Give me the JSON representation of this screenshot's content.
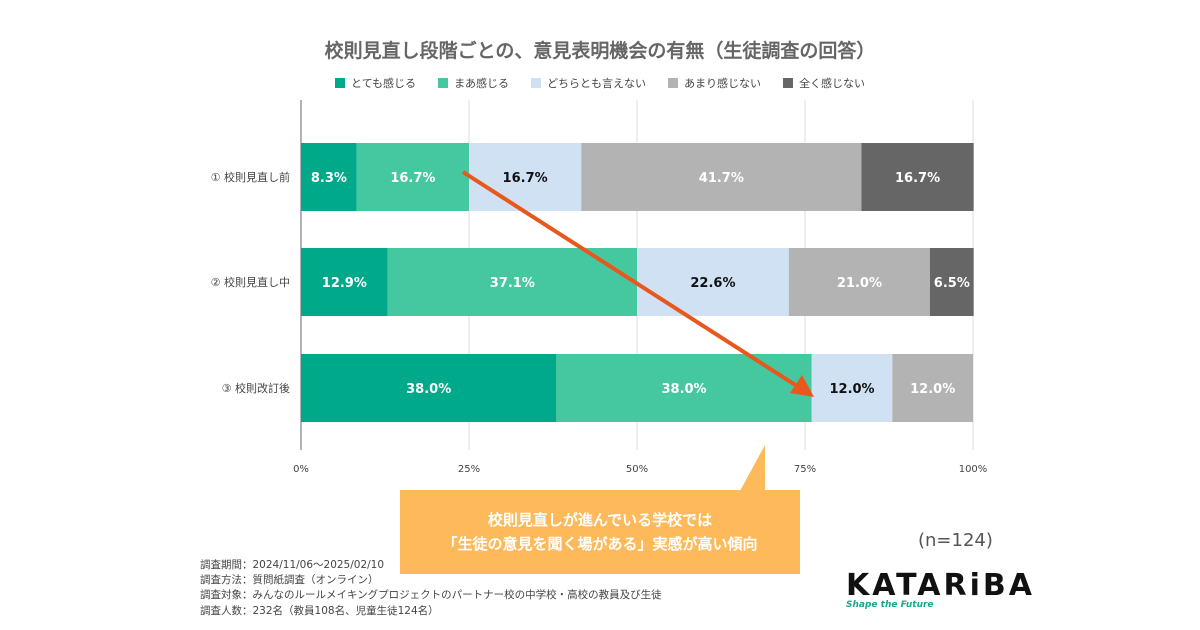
{
  "chart_data": {
    "type": "bar",
    "orientation": "horizontal-stacked-100",
    "title": "校則見直し段階ごとの、意見表明機会の有無（生徒調査の回答）",
    "categories": [
      "① 校則見直し前",
      "② 校則見直し中",
      "③ 校則改訂後"
    ],
    "series": [
      {
        "name": "とても感じる",
        "color": "#00a98a",
        "values": [
          8.3,
          12.9,
          38.0
        ]
      },
      {
        "name": "まあ感じる",
        "color": "#45c7a0",
        "values": [
          16.7,
          37.1,
          38.0
        ]
      },
      {
        "name": "どちらとも言えない",
        "color": "#cfe1f2",
        "values": [
          16.7,
          22.6,
          12.0
        ]
      },
      {
        "name": "あまり感じない",
        "color": "#b3b3b3",
        "values": [
          41.7,
          21.0,
          12.0
        ]
      },
      {
        "name": "全く感じない",
        "color": "#666666",
        "values": [
          16.7,
          6.5,
          0
        ]
      }
    ],
    "xlim": [
      0,
      100
    ],
    "xticks": [
      "0%",
      "25%",
      "50%",
      "75%",
      "100%"
    ],
    "grid": true,
    "legend_position": "top",
    "arrow_color": "#e8571c"
  },
  "callout": {
    "line1": "校則見直しが進んでいる学校では",
    "line2": "「生徒の意見を聞く場がある」実感が高い傾向",
    "color": "#fdb95a"
  },
  "sample": "(n=124)",
  "notes": [
    "調査期間：2024/11/06〜2025/02/10",
    "調査方法：質問紙調査（オンライン）",
    "調査対象：みんなのルールメイキングプロジェクトのパートナー校の中学校・高校の教員及び生徒",
    "調査人数：232名（教員108名、児童生徒124名）"
  ],
  "logo": {
    "name": "KATARiBA",
    "tagline": "Shape the Future"
  }
}
